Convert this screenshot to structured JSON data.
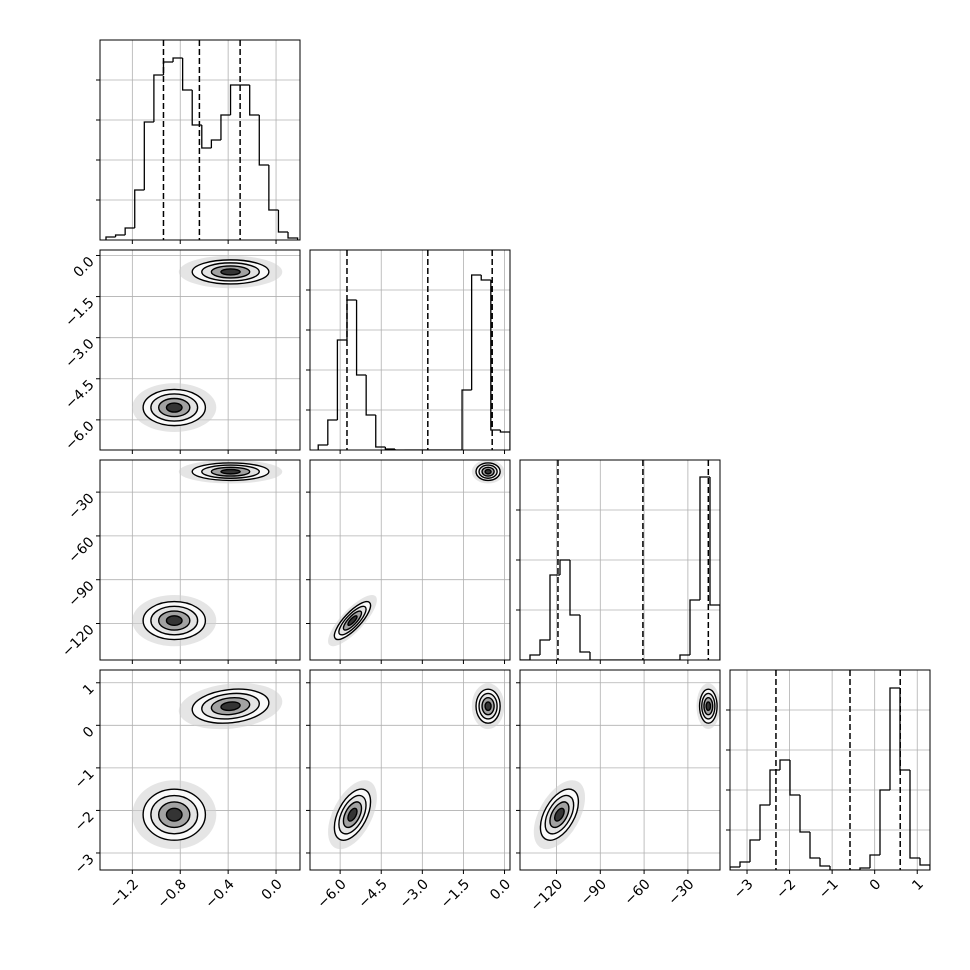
{
  "chart_data": {
    "type": "corner",
    "color": "#000000",
    "levels": [
      0.5,
      1,
      1.5,
      2
    ],
    "parameters": [
      {
        "lim": [
          -1.47,
          0.2
        ],
        "ticks": [
          {
            "value": -1.2,
            "label": "−1.2"
          },
          {
            "value": -0.8,
            "label": "−0.8"
          },
          {
            "value": -0.4,
            "label": "−0.4"
          },
          {
            "value": 0,
            "label": "0.0"
          }
        ],
        "quantiles": [
          -0.94,
          -0.64,
          -0.3
        ],
        "hist": {
          "bins": [
            -1.42,
            -1.34,
            -1.26,
            -1.18,
            -1.1,
            -1.02,
            -0.94,
            -0.86,
            -0.78,
            -0.7,
            -0.62,
            -0.54,
            -0.46,
            -0.38,
            -0.3,
            -0.22,
            -0.14,
            -0.06,
            0.02,
            0.1,
            0.18
          ],
          "counts": [
            3,
            5,
            12,
            50,
            118,
            165,
            178,
            182,
            150,
            115,
            92,
            100,
            125,
            155,
            155,
            125,
            75,
            30,
            8,
            2
          ],
          "ylim": [
            0,
            200
          ],
          "yticks": [
            40,
            80,
            120,
            160
          ]
        }
      },
      {
        "lim": [
          -7.1,
          0.2
        ],
        "ticks": [
          {
            "value": -6,
            "label": "−6.0"
          },
          {
            "value": -4.5,
            "label": "−4.5"
          },
          {
            "value": -3,
            "label": "−3.0"
          },
          {
            "value": -1.5,
            "label": "−1.5"
          },
          {
            "value": 0,
            "label": "0.0"
          }
        ],
        "quantiles": [
          -5.75,
          -2.8,
          -0.45
        ],
        "hist": {
          "bins": [
            -6.8,
            -6.45,
            -6.1,
            -5.75,
            -5.4,
            -5.05,
            -4.7,
            -4.35,
            -4.0,
            -3.65,
            -3.3,
            -2.95,
            -2.6,
            -2.25,
            -1.9,
            -1.55,
            -1.2,
            -0.85,
            -0.5,
            -0.15,
            0.2
          ],
          "counts": [
            5,
            30,
            110,
            150,
            75,
            35,
            3,
            1,
            0,
            0,
            0,
            0,
            0,
            0,
            0,
            60,
            175,
            170,
            20,
            18
          ],
          "ylim": [
            0,
            200
          ],
          "yticks": [
            40,
            80,
            120,
            160
          ]
        }
      },
      {
        "lim": [
          -145,
          -8
        ],
        "ticks": [
          {
            "value": -120,
            "label": "−120"
          },
          {
            "value": -90,
            "label": "−90"
          },
          {
            "value": -60,
            "label": "−60"
          },
          {
            "value": -30,
            "label": "−30"
          }
        ],
        "quantiles": [
          -119,
          -60.8,
          -16
        ],
        "hist": {
          "bins": [
            -145,
            -138.15,
            -131.3,
            -124.45,
            -117.6,
            -110.75,
            -103.9,
            -97.05,
            -90.2,
            -83.35,
            -76.5,
            -69.65,
            -62.8,
            -55.95,
            -49.1,
            -42.25,
            -35.4,
            -28.55,
            -21.7,
            -14.85,
            -8
          ],
          "counts": [
            0,
            5,
            20,
            85,
            100,
            45,
            8,
            0,
            0,
            0,
            0,
            0,
            0,
            0,
            0,
            0,
            5,
            60,
            183,
            55
          ],
          "ylim": [
            0,
            200
          ],
          "yticks": [
            50,
            100,
            150
          ]
        }
      },
      {
        "lim": [
          -3.4,
          1.3
        ],
        "ticks": [
          {
            "value": -3,
            "label": "−3"
          },
          {
            "value": -2,
            "label": "−2"
          },
          {
            "value": -1,
            "label": "−1"
          },
          0,
          1
        ],
        "quantiles": [
          -2.32,
          -0.58,
          0.6
        ],
        "hist": {
          "bins": [
            -3.4,
            -3.165,
            -2.93,
            -2.695,
            -2.46,
            -2.225,
            -1.99,
            -1.755,
            -1.52,
            -1.285,
            -1.05,
            -0.815,
            -0.58,
            -0.345,
            -0.11,
            0.125,
            0.36,
            0.595,
            0.83,
            1.065,
            1.3
          ],
          "counts": [
            3,
            8,
            30,
            65,
            100,
            110,
            75,
            38,
            12,
            4,
            0,
            0,
            0,
            2,
            15,
            80,
            182,
            100,
            12,
            5
          ],
          "ylim": [
            0,
            200
          ],
          "yticks": [
            40,
            80,
            120,
            160
          ]
        }
      }
    ],
    "modes": [
      {
        "mean": [
          -0.85,
          -5.55,
          -118,
          -2.1
        ],
        "sd": [
          0.13,
          0.33,
          6.5,
          0.3
        ],
        "corr": [
          {
            "pair": [
              1,
              2
            ],
            "rho": 0.8
          },
          {
            "pair": [
              1,
              3
            ],
            "rho": 0.5
          },
          {
            "pair": [
              2,
              3
            ],
            "rho": 0.5
          }
        ]
      },
      {
        "mean": [
          -0.38,
          -0.6,
          -16,
          0.45
        ],
        "sd": [
          0.16,
          0.22,
          3,
          0.2
        ],
        "corr": [
          {
            "pair": [
              0,
              3
            ],
            "rho": 0.2
          }
        ]
      }
    ]
  }
}
